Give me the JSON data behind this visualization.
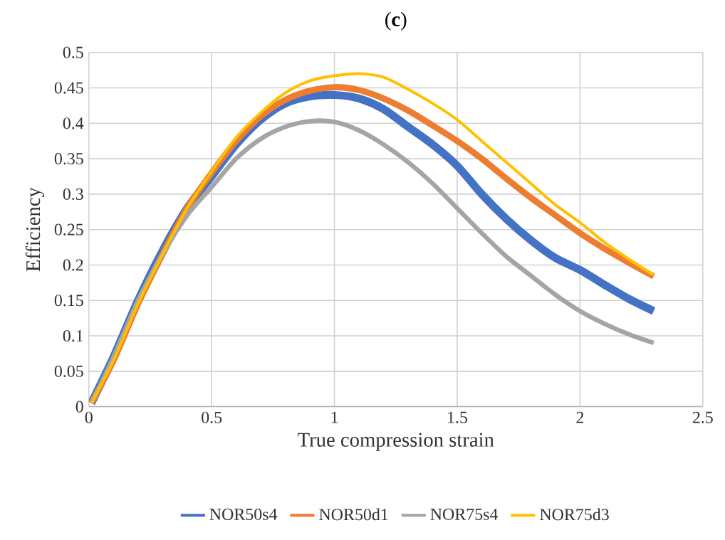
{
  "chart_data": {
    "type": "line",
    "title": "(**c**)",
    "xlabel": "True compression strain",
    "ylabel": "Efficiency",
    "x": [
      0.01,
      0.1,
      0.2,
      0.3,
      0.4,
      0.5,
      0.6,
      0.7,
      0.8,
      0.9,
      1.0,
      1.1,
      1.2,
      1.3,
      1.4,
      1.5,
      1.6,
      1.7,
      1.8,
      1.9,
      2.0,
      2.1,
      2.2,
      2.3
    ],
    "series": [
      {
        "name": "NOR50s4",
        "color": "#4472c4",
        "values": [
          0.005,
          0.07,
          0.15,
          0.22,
          0.28,
          0.325,
          0.37,
          0.405,
          0.428,
          0.438,
          0.44,
          0.435,
          0.42,
          0.395,
          0.37,
          0.34,
          0.3,
          0.265,
          0.235,
          0.21,
          0.193,
          0.172,
          0.152,
          0.135
        ]
      },
      {
        "name": "NOR50d1",
        "color": "#ed7d31",
        "values": [
          0.005,
          0.065,
          0.145,
          0.215,
          0.28,
          0.33,
          0.375,
          0.41,
          0.433,
          0.446,
          0.451,
          0.447,
          0.435,
          0.418,
          0.397,
          0.375,
          0.35,
          0.322,
          0.295,
          0.27,
          0.245,
          0.223,
          0.203,
          0.184
        ]
      },
      {
        "name": "NOR75s4",
        "color": "#a5a5a5",
        "values": [
          0.005,
          0.07,
          0.15,
          0.215,
          0.27,
          0.31,
          0.35,
          0.378,
          0.395,
          0.403,
          0.402,
          0.39,
          0.37,
          0.345,
          0.315,
          0.28,
          0.245,
          0.212,
          0.185,
          0.158,
          0.135,
          0.117,
          0.102,
          0.09
        ]
      },
      {
        "name": "NOR75d3",
        "color": "#ffc000",
        "values": [
          0.005,
          0.065,
          0.145,
          0.215,
          0.28,
          0.332,
          0.38,
          0.415,
          0.443,
          0.46,
          0.467,
          0.47,
          0.465,
          0.448,
          0.428,
          0.405,
          0.375,
          0.345,
          0.315,
          0.285,
          0.26,
          0.232,
          0.208,
          0.186
        ]
      }
    ],
    "xlim": [
      0,
      2.5
    ],
    "xticks": [
      0,
      0.5,
      1,
      1.5,
      2,
      2.5
    ],
    "ylim": [
      0,
      0.5
    ],
    "yticks": [
      0,
      0.05,
      0.1,
      0.15,
      0.2,
      0.25,
      0.3,
      0.35,
      0.4,
      0.45,
      0.5
    ],
    "grid": true,
    "legend": "bottom",
    "marker": "none",
    "line_style": "solid"
  }
}
